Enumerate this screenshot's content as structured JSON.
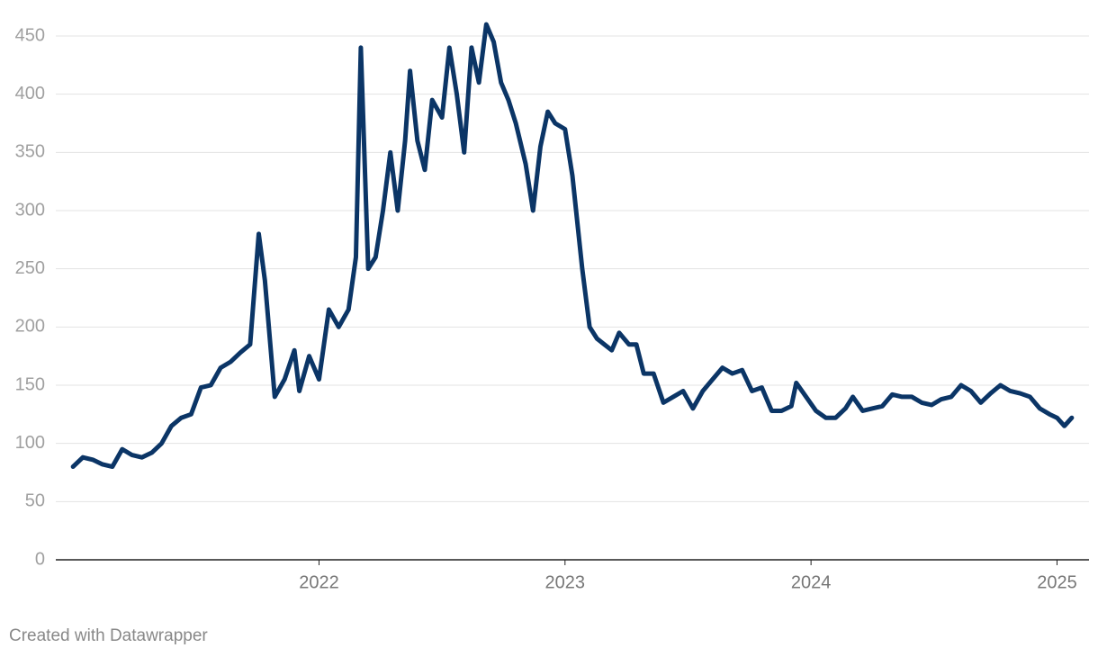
{
  "chart_data": {
    "type": "line",
    "color": "#0b3566",
    "grid": true,
    "footer": "Created with Datawrapper",
    "x": [
      2021.0,
      2021.04,
      2021.08,
      2021.12,
      2021.16,
      2021.2,
      2021.24,
      2021.28,
      2021.32,
      2021.36,
      2021.4,
      2021.44,
      2021.48,
      2021.52,
      2021.56,
      2021.6,
      2021.64,
      2021.68,
      2021.72,
      2021.755,
      2021.78,
      2021.82,
      2021.86,
      2021.9,
      2021.92,
      2021.96,
      2022.0,
      2022.04,
      2022.08,
      2022.12,
      2022.15,
      2022.17,
      2022.2,
      2022.23,
      2022.26,
      2022.29,
      2022.32,
      2022.35,
      2022.37,
      2022.4,
      2022.43,
      2022.46,
      2022.5,
      2022.53,
      2022.56,
      2022.59,
      2022.62,
      2022.65,
      2022.68,
      2022.71,
      2022.74,
      2022.77,
      2022.8,
      2022.84,
      2022.87,
      2022.9,
      2022.93,
      2022.96,
      2023.0,
      2023.03,
      2023.07,
      2023.1,
      2023.13,
      2023.16,
      2023.19,
      2023.22,
      2023.26,
      2023.29,
      2023.32,
      2023.36,
      2023.4,
      2023.44,
      2023.48,
      2023.52,
      2023.56,
      2023.6,
      2023.64,
      2023.68,
      2023.72,
      2023.76,
      2023.8,
      2023.84,
      2023.88,
      2023.92,
      2023.94,
      2023.98,
      2024.02,
      2024.06,
      2024.1,
      2024.14,
      2024.17,
      2024.21,
      2024.25,
      2024.29,
      2024.33,
      2024.37,
      2024.41,
      2024.45,
      2024.49,
      2024.53,
      2024.57,
      2024.61,
      2024.65,
      2024.69,
      2024.73,
      2024.77,
      2024.81,
      2024.85,
      2024.89,
      2024.93,
      2024.97,
      2025.0,
      2025.03,
      2025.06
    ],
    "values": [
      80,
      88,
      86,
      82,
      80,
      95,
      90,
      88,
      92,
      100,
      115,
      122,
      125,
      148,
      150,
      165,
      170,
      178,
      185,
      280,
      240,
      140,
      155,
      180,
      145,
      175,
      155,
      215,
      200,
      215,
      260,
      440,
      250,
      260,
      300,
      350,
      300,
      360,
      420,
      360,
      335,
      395,
      380,
      440,
      400,
      350,
      440,
      410,
      460,
      445,
      410,
      395,
      375,
      340,
      300,
      355,
      385,
      375,
      370,
      330,
      250,
      200,
      190,
      185,
      180,
      195,
      185,
      185,
      160,
      160,
      135,
      140,
      145,
      130,
      145,
      155,
      165,
      160,
      163,
      145,
      148,
      128,
      128,
      132,
      152,
      140,
      128,
      122,
      122,
      130,
      140,
      128,
      130,
      132,
      142,
      140,
      140,
      135,
      133,
      138,
      140,
      150,
      145,
      135,
      143,
      150,
      145,
      143,
      140,
      130,
      125,
      122,
      115,
      122
    ],
    "xlim": [
      2020.93,
      2025.13
    ],
    "xticks": [
      2022,
      2023,
      2024,
      2025
    ],
    "ylim": [
      0,
      450
    ],
    "yticks": [
      0,
      50,
      100,
      150,
      200,
      250,
      300,
      350,
      400,
      450
    ]
  }
}
